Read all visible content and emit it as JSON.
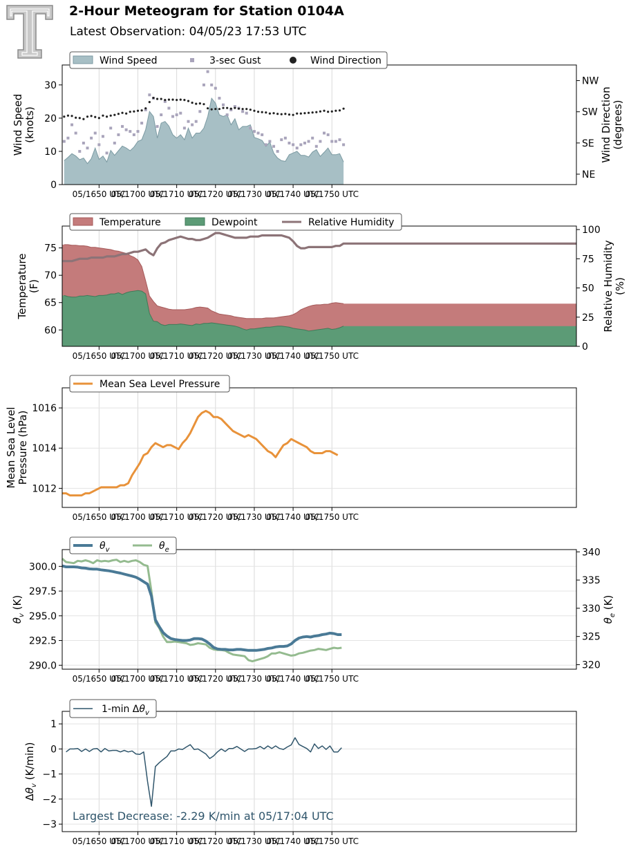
{
  "header": {
    "title": "2-Hour Meteogram for Station 0104A",
    "subtitle": "Latest Observation: 04/05/23 17:53 UTC"
  },
  "logo": {
    "icon": "texas-tech-double-t-logo"
  },
  "colors": {
    "wind_fill": "#a7bfc5",
    "wind_line": "#7b9aa2",
    "gust": "#a9a4bb",
    "direction": "#222222",
    "temperature": "#c47b7b",
    "dewpoint": "#5c9b76",
    "rh": "#8c7377",
    "pressure": "#e8923a",
    "theta_v": "#4a7a96",
    "theta_e": "#94bb8f",
    "dtheta": "#2f556b",
    "annotation": "#2f556b"
  },
  "x_axis": {
    "start_min": 40.5,
    "end_min": 173,
    "ticks": [
      {
        "min": 50,
        "label": "05/1650 UTC"
      },
      {
        "min": 60,
        "label": "05/1700 UTC"
      },
      {
        "min": 70,
        "label": "05/1710 UTC"
      },
      {
        "min": 80,
        "label": "05/1720 UTC"
      },
      {
        "min": 90,
        "label": "05/1730 UTC"
      },
      {
        "min": 100,
        "label": "05/1740 UTC"
      },
      {
        "min": 110,
        "label": "05/1750 UTC"
      }
    ]
  },
  "chart_data": [
    {
      "id": "wind",
      "type": "area",
      "ylabel": "Wind Speed\n(knots)",
      "y2label": "Wind Direction\n(degrees)",
      "ylim": [
        0,
        36
      ],
      "yticks": [
        0,
        10,
        20,
        30
      ],
      "y2lim": [
        15,
        360
      ],
      "y2ticks": [
        {
          "value": 45,
          "label": "NE"
        },
        {
          "value": 135,
          "label": "SE"
        },
        {
          "value": 225,
          "label": "SW"
        },
        {
          "value": 315,
          "label": "NW"
        }
      ],
      "legend": [
        "Wind Speed",
        "3-sec Gust",
        "Wind Direction"
      ],
      "x_start": 41,
      "x_step": 1,
      "speed": [
        7.2,
        8.2,
        9.3,
        8.6,
        7.5,
        8.0,
        6.3,
        7.8,
        11.0,
        7.6,
        8.6,
        6.8,
        10.3,
        8.8,
        10.2,
        11.6,
        11.0,
        10.2,
        11.3,
        13.0,
        13.5,
        16.5,
        22.0,
        20.5,
        14.0,
        18.5,
        19.0,
        17.6,
        15.0,
        14.0,
        15.0,
        13.5,
        17.0,
        14.0,
        15.5,
        15.5,
        17.0,
        20.5,
        26.0,
        24.5,
        21.0,
        20.5,
        21.0,
        18.0,
        19.8,
        16.5,
        17.5,
        17.5,
        18.0,
        14.2,
        13.8,
        13.3,
        11.5,
        12.8,
        9.5,
        8.0,
        7.2,
        7.0,
        9.0,
        9.5,
        10.0,
        8.8,
        8.8,
        8.3,
        9.8,
        10.5,
        8.5,
        9.7,
        11.0,
        9.0,
        9.0,
        9.3,
        6.8
      ],
      "gust": [
        13.0,
        14.0,
        18.0,
        15.5,
        10.0,
        12.5,
        11.0,
        14.0,
        15.5,
        12.0,
        14.5,
        9.5,
        17.0,
        12.5,
        15.0,
        17.5,
        16.5,
        16.0,
        15.0,
        16.0,
        18.5,
        22.5,
        27.0,
        26.0,
        17.5,
        21.0,
        25.0,
        23.0,
        20.5,
        21.0,
        21.5,
        17.0,
        19.0,
        18.0,
        19.0,
        22.0,
        30.0,
        34.0,
        30.0,
        29.0,
        26.0,
        24.0,
        21.0,
        22.5,
        23.5,
        23.0,
        22.0,
        21.5,
        17.0,
        16.0,
        15.5,
        15.0,
        12.0,
        13.0,
        11.5,
        10.0,
        13.5,
        14.0,
        12.5,
        12.0,
        11.0,
        12.0,
        12.5,
        13.0,
        14.0,
        11.5,
        13.0,
        15.5,
        15.0,
        13.0,
        13.0,
        13.5,
        12.0
      ],
      "direction": [
        211,
        214,
        213,
        208,
        207,
        204,
        211,
        213,
        210,
        207,
        214,
        211,
        214,
        216,
        219,
        222,
        220,
        225,
        226,
        228,
        229,
        235,
        253,
        265,
        262,
        262,
        259,
        260,
        260,
        259,
        260,
        259,
        256,
        251,
        248,
        249,
        247,
        235,
        232,
        233,
        233,
        236,
        236,
        234,
        236,
        234,
        233,
        233,
        231,
        228,
        225,
        224,
        223,
        220,
        221,
        219,
        218,
        219,
        217,
        216,
        220,
        220,
        221,
        222,
        223,
        224,
        226,
        228,
        225,
        226,
        228,
        229,
        234
      ]
    },
    {
      "id": "thermo",
      "type": "area",
      "ylabel": "Temperature\n(F)",
      "y2label": "Relative Humidity\n(%)",
      "ylim": [
        57,
        79
      ],
      "yticks": [
        60,
        65,
        70,
        75
      ],
      "y2lim": [
        0,
        103
      ],
      "y2ticks": [
        0,
        25,
        50,
        75,
        100
      ],
      "legend": [
        "Temperature",
        "Dewpoint",
        "Relative Humidity"
      ],
      "x_start": 41,
      "x_step": 1,
      "temperature": [
        75.6,
        75.6,
        75.5,
        75.5,
        75.4,
        75.4,
        75.3,
        75.1,
        75.1,
        75.0,
        74.9,
        74.8,
        74.7,
        74.5,
        74.4,
        74.2,
        74.0,
        73.6,
        73.3,
        72.8,
        71.6,
        69.0,
        66.2,
        65.2,
        64.4,
        64.2,
        64.0,
        63.8,
        63.7,
        63.7,
        63.7,
        63.7,
        63.8,
        63.9,
        64.1,
        64.2,
        64.1,
        64.0,
        63.5,
        63.2,
        62.9,
        62.8,
        62.7,
        62.6,
        62.4,
        62.3,
        62.2,
        62.1,
        62.1,
        62.1,
        62.1,
        62.1,
        62.2,
        62.2,
        62.2,
        62.3,
        62.4,
        62.5,
        62.6,
        62.8,
        63.2,
        63.7,
        64.0,
        64.3,
        64.5,
        64.6,
        64.6,
        64.7,
        64.7,
        64.9,
        65.0,
        64.9,
        64.8
      ],
      "dewpoint": [
        66.3,
        66.1,
        66.0,
        66.0,
        66.2,
        66.2,
        66.3,
        66.2,
        66.1,
        66.3,
        66.3,
        66.4,
        66.6,
        66.6,
        66.8,
        66.5,
        66.8,
        67.0,
        67.1,
        67.2,
        67.1,
        66.6,
        63.0,
        61.6,
        61.5,
        61.0,
        60.8,
        61.0,
        61.0,
        61.0,
        61.1,
        61.0,
        60.9,
        60.8,
        61.1,
        61.0,
        61.2,
        61.2,
        61.3,
        61.2,
        61.1,
        61.0,
        60.9,
        60.8,
        60.7,
        60.5,
        60.2,
        60.0,
        60.2,
        60.2,
        60.3,
        60.4,
        60.5,
        60.5,
        60.6,
        60.7,
        60.7,
        60.6,
        60.5,
        60.3,
        60.2,
        60.1,
        60.0,
        59.8,
        59.9,
        60.0,
        60.1,
        60.2,
        60.3,
        60.1,
        60.2,
        60.4,
        60.7
      ],
      "relative_humidity": [
        73,
        73,
        73,
        74,
        75,
        75,
        75,
        76,
        76,
        76,
        76,
        77,
        77,
        77,
        78,
        79,
        79,
        80,
        81,
        81,
        82,
        83,
        80,
        78,
        84,
        88,
        89,
        91,
        92,
        93,
        94,
        93,
        92,
        92,
        91,
        91,
        92,
        93,
        95,
        97,
        97,
        96,
        95,
        94,
        93,
        93,
        93,
        93,
        94,
        94,
        94,
        95,
        95,
        95,
        95,
        95,
        95,
        94,
        93,
        90,
        86,
        84,
        84,
        85,
        85,
        85,
        85,
        85,
        85,
        85,
        86,
        86,
        88
      ]
    },
    {
      "id": "pressure",
      "type": "line",
      "ylabel": "Mean Sea Level\nPressure (hPa)",
      "ylim": [
        1011.05,
        1017.0
      ],
      "yticks": [
        1012,
        1014,
        1016
      ],
      "legend": [
        "Mean Sea Level Pressure"
      ],
      "x_start": 40.5,
      "x_step": 1,
      "values": [
        1011.75,
        1011.75,
        1011.65,
        1011.65,
        1011.65,
        1011.65,
        1011.75,
        1011.75,
        1011.85,
        1011.95,
        1012.05,
        1012.05,
        1012.05,
        1012.05,
        1012.05,
        1012.15,
        1012.15,
        1012.25,
        1012.65,
        1012.95,
        1013.25,
        1013.65,
        1013.75,
        1014.05,
        1014.25,
        1014.15,
        1014.05,
        1014.15,
        1014.15,
        1014.05,
        1013.95,
        1014.25,
        1014.45,
        1014.75,
        1015.15,
        1015.55,
        1015.75,
        1015.85,
        1015.75,
        1015.55,
        1015.55,
        1015.45,
        1015.25,
        1015.05,
        1014.85,
        1014.75,
        1014.65,
        1014.55,
        1014.65,
        1014.55,
        1014.45,
        1014.25,
        1014.05,
        1013.85,
        1013.75,
        1013.55,
        1013.85,
        1014.15,
        1014.25,
        1014.45,
        1014.35,
        1014.25,
        1014.15,
        1014.05,
        1013.85,
        1013.75,
        1013.75,
        1013.75,
        1013.85,
        1013.85,
        1013.75,
        1013.65
      ],
      "grid": true
    },
    {
      "id": "theta",
      "type": "line",
      "ylabel": "θv (K)",
      "y2label": "θe (K)",
      "ylim": [
        289.6,
        301.7
      ],
      "yticks": [
        290.0,
        292.5,
        295.0,
        297.5,
        300.0
      ],
      "y2lim": [
        319.2,
        340.4
      ],
      "y2ticks": [
        320,
        325,
        330,
        335,
        340
      ],
      "legend": [
        "θv",
        "θe"
      ],
      "x_start": 40.5,
      "x_step": 1,
      "theta_v": [
        300.05,
        299.95,
        299.95,
        299.95,
        299.92,
        299.85,
        299.82,
        299.75,
        299.72,
        299.72,
        299.65,
        299.6,
        299.55,
        299.48,
        299.4,
        299.32,
        299.22,
        299.12,
        299.02,
        298.9,
        298.7,
        298.45,
        298.2,
        297.0,
        294.6,
        293.9,
        293.3,
        292.95,
        292.7,
        292.6,
        292.55,
        292.5,
        292.5,
        292.55,
        292.7,
        292.7,
        292.65,
        292.45,
        292.15,
        291.8,
        291.65,
        291.6,
        291.6,
        291.55,
        291.55,
        291.6,
        291.6,
        291.55,
        291.5,
        291.5,
        291.5,
        291.55,
        291.6,
        291.7,
        291.75,
        291.85,
        291.9,
        291.9,
        291.95,
        292.15,
        292.5,
        292.75,
        292.85,
        292.9,
        292.85,
        292.95,
        293.0,
        293.1,
        293.15,
        293.25,
        293.2,
        293.1,
        293.1
      ],
      "theta_e": [
        338.8,
        338.2,
        338.1,
        338.0,
        338.4,
        338.3,
        338.5,
        338.3,
        338.0,
        338.5,
        338.3,
        338.4,
        338.3,
        338.5,
        338.6,
        338.2,
        338.4,
        338.2,
        338.4,
        338.5,
        338.2,
        337.7,
        337.5,
        333.0,
        327.5,
        326.5,
        325.0,
        324.0,
        324.0,
        324.1,
        324.0,
        323.9,
        323.8,
        323.5,
        323.6,
        323.8,
        323.7,
        323.6,
        323.0,
        322.7,
        322.6,
        322.6,
        322.5,
        322.1,
        321.8,
        321.7,
        321.6,
        321.5,
        320.8,
        320.6,
        320.8,
        321.0,
        321.2,
        321.5,
        322.0,
        322.0,
        322.2,
        322.0,
        321.8,
        321.6,
        321.7,
        322.0,
        322.1,
        322.3,
        322.5,
        322.6,
        322.8,
        322.7,
        322.6,
        322.8,
        323.0,
        322.9,
        323.0
      ]
    },
    {
      "id": "dtheta",
      "type": "line",
      "ylabel": "Δθv (K/min)",
      "ylim": [
        -3.3,
        1.5
      ],
      "yticks": [
        -3,
        -2,
        -1,
        0,
        1
      ],
      "legend": [
        "1-min Δθv"
      ],
      "annotation": "Largest Decrease: -2.29 K/min at 05/17:04 UTC",
      "x_start": 41.5,
      "x_step": 1,
      "values": [
        -0.12,
        0.0,
        0.0,
        0.02,
        -0.1,
        0.0,
        -0.1,
        0.0,
        0.02,
        -0.12,
        0.02,
        -0.08,
        -0.06,
        -0.06,
        -0.12,
        -0.06,
        -0.12,
        -0.08,
        -0.2,
        -0.22,
        -0.12,
        -1.3,
        -2.29,
        -0.7,
        -0.55,
        -0.42,
        -0.3,
        -0.08,
        -0.08,
        0.0,
        -0.02,
        0.08,
        0.17,
        -0.02,
        0.0,
        -0.1,
        -0.2,
        -0.38,
        -0.28,
        -0.12,
        0.0,
        -0.1,
        0.02,
        0.02,
        0.1,
        0.0,
        -0.1,
        0.0,
        0.0,
        0.02,
        0.1,
        0.0,
        0.12,
        0.02,
        0.12,
        0.02,
        -0.02,
        0.08,
        0.16,
        0.45,
        0.18,
        0.1,
        0.02,
        -0.12,
        0.2,
        0.02,
        0.12,
        -0.02,
        0.12,
        -0.12,
        -0.12,
        0.05
      ]
    }
  ]
}
